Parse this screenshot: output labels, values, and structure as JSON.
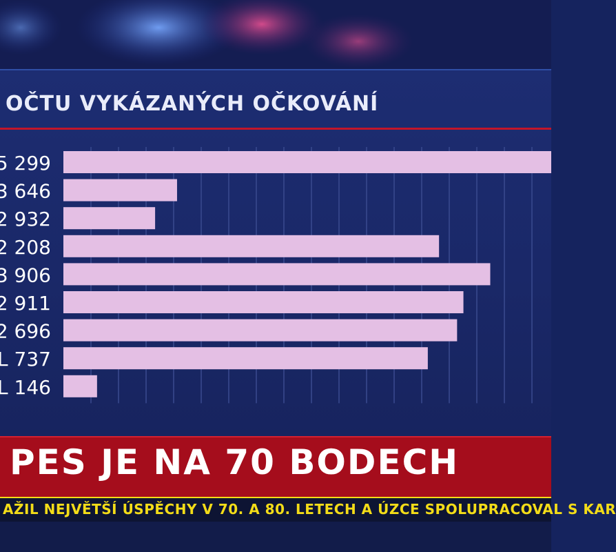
{
  "chart_data": {
    "type": "bar",
    "orientation": "horizontal",
    "title": "OČTU VYKÁZANÝCH OČKOVÁNÍ",
    "categories": [
      "5 299",
      "3 646",
      "2 932",
      "2 208",
      "3 906",
      "2 911",
      "2 696",
      "L 737",
      "L 146"
    ],
    "values": [
      1.0,
      0.233,
      0.188,
      0.77,
      0.875,
      0.82,
      0.807,
      0.747,
      0.069
    ],
    "value_scale": "fraction of widest bar (visible portion)",
    "grid": true,
    "colors": {
      "bar": "#e4bfe4",
      "grid": "#3a4b8f"
    }
  },
  "news": {
    "headline": "PES JE NA 70 BODECH",
    "ticker": "AŽIL NEJVĚTŠÍ ÚSPĚCHY V 70. A 80. LETECH A ÚZCE SPOLUPRACOVAL S KAR"
  },
  "colors": {
    "background": "#15235e",
    "accent_red": "#a50d1c",
    "ticker_yellow": "#f3dc18"
  }
}
